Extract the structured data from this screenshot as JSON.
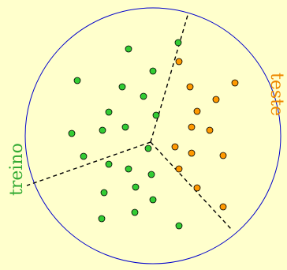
{
  "diagram": {
    "background": "#ffffcc",
    "circle_color": "#0000cc",
    "divider_color": "#000000",
    "labels": {
      "train": {
        "text": "treino",
        "color": "#33aa33"
      },
      "test": {
        "text": "teste",
        "color": "#ee8800"
      }
    },
    "point_colors": {
      "train": "#33cc33",
      "test": "#ff9900"
    }
  }
}
